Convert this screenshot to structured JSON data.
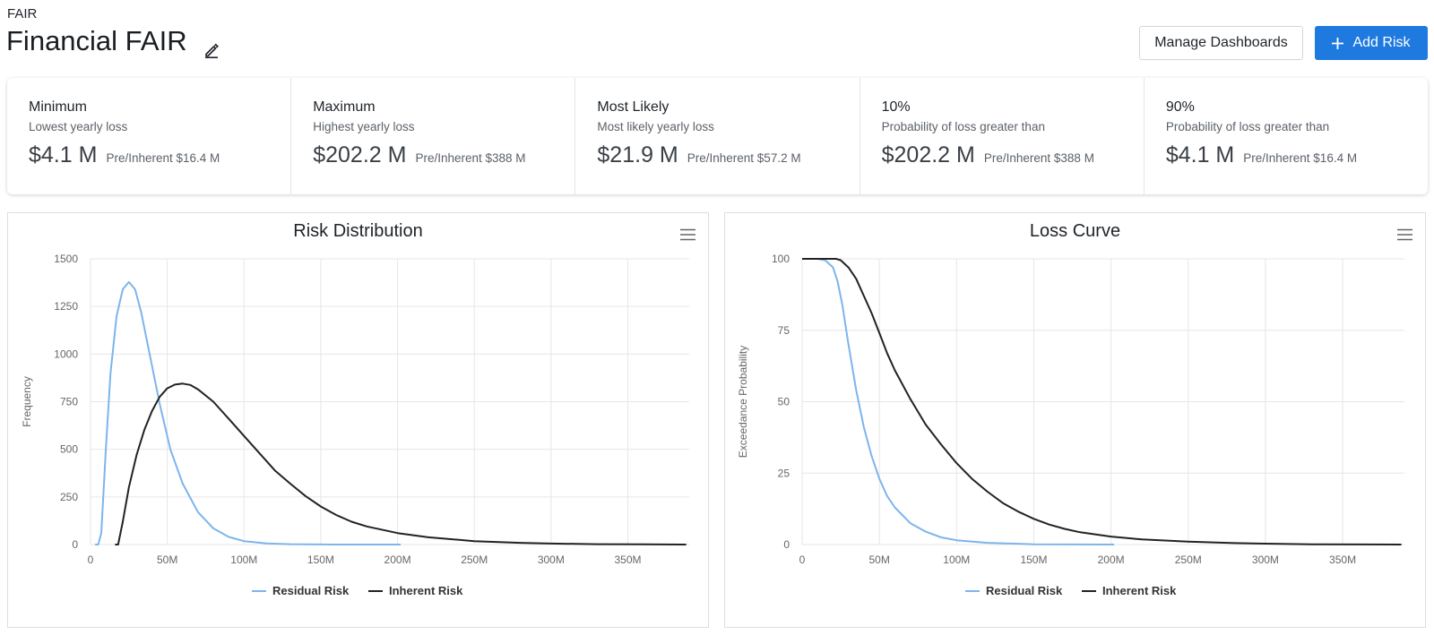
{
  "header": {
    "breadcrumb": "FAIR",
    "title": "Financial FAIR",
    "edit_icon": "pencil-icon",
    "manage_label": "Manage Dashboards",
    "add_label": "Add Risk",
    "add_icon": "plus-icon",
    "accent_color": "#1f7ae0"
  },
  "stats": [
    {
      "label": "Minimum",
      "sub": "Lowest yearly loss",
      "value": "$4.1 M",
      "pre": "Pre/Inherent $16.4 M"
    },
    {
      "label": "Maximum",
      "sub": "Highest yearly loss",
      "value": "$202.2 M",
      "pre": "Pre/Inherent $388 M"
    },
    {
      "label": "Most Likely",
      "sub": "Most likely yearly loss",
      "value": "$21.9 M",
      "pre": "Pre/Inherent $57.2 M"
    },
    {
      "label": "10%",
      "sub": "Probability of loss greater than",
      "value": "$202.2 M",
      "pre": "Pre/Inherent $388 M"
    },
    {
      "label": "90%",
      "sub": "Probability of loss greater than",
      "value": "$4.1 M",
      "pre": "Pre/Inherent $16.4 M"
    }
  ],
  "chart_data": [
    {
      "type": "line",
      "title": "Risk Distribution",
      "xlabel": "",
      "ylabel": "Frequency",
      "xlim": [
        0,
        390
      ],
      "ylim": [
        0,
        1500
      ],
      "x_ticks": [
        "0",
        "50M",
        "100M",
        "150M",
        "200M",
        "250M",
        "300M",
        "350M"
      ],
      "y_ticks": [
        "0",
        "250",
        "500",
        "750",
        "1000",
        "1250",
        "1500"
      ],
      "legend_position": "bottom",
      "menu_icon": "hamburger-menu-icon",
      "series": [
        {
          "name": "Residual Risk",
          "color": "#7cb5ec",
          "points": [
            [
              3,
              0
            ],
            [
              5,
              0
            ],
            [
              7,
              60
            ],
            [
              10,
              500
            ],
            [
              13,
              900
            ],
            [
              17,
              1200
            ],
            [
              21,
              1340
            ],
            [
              25,
              1378
            ],
            [
              29,
              1340
            ],
            [
              33,
              1220
            ],
            [
              38,
              1020
            ],
            [
              45,
              740
            ],
            [
              52,
              500
            ],
            [
              60,
              320
            ],
            [
              70,
              170
            ],
            [
              80,
              85
            ],
            [
              90,
              40
            ],
            [
              100,
              18
            ],
            [
              115,
              6
            ],
            [
              130,
              2
            ],
            [
              160,
              0
            ],
            [
              202,
              0
            ]
          ]
        },
        {
          "name": "Inherent Risk",
          "color": "#222222",
          "points": [
            [
              16,
              0
            ],
            [
              18,
              0
            ],
            [
              21,
              120
            ],
            [
              25,
              300
            ],
            [
              30,
              470
            ],
            [
              35,
              600
            ],
            [
              40,
              700
            ],
            [
              45,
              775
            ],
            [
              50,
              820
            ],
            [
              55,
              840
            ],
            [
              60,
              845
            ],
            [
              65,
              838
            ],
            [
              70,
              815
            ],
            [
              80,
              750
            ],
            [
              90,
              660
            ],
            [
              100,
              570
            ],
            [
              110,
              480
            ],
            [
              120,
              390
            ],
            [
              130,
              320
            ],
            [
              140,
              255
            ],
            [
              150,
              200
            ],
            [
              160,
              155
            ],
            [
              170,
              120
            ],
            [
              180,
              95
            ],
            [
              200,
              60
            ],
            [
              220,
              38
            ],
            [
              250,
              18
            ],
            [
              280,
              9
            ],
            [
              300,
              5
            ],
            [
              330,
              2
            ],
            [
              360,
              1
            ],
            [
              388,
              0
            ]
          ]
        }
      ]
    },
    {
      "type": "line",
      "title": "Loss Curve",
      "xlabel": "",
      "ylabel": "Exceedance Probability",
      "xlim": [
        0,
        390
      ],
      "ylim": [
        0,
        100
      ],
      "x_ticks": [
        "0",
        "50M",
        "100M",
        "150M",
        "200M",
        "250M",
        "300M",
        "350M"
      ],
      "y_ticks": [
        "0",
        "25",
        "50",
        "75",
        "100"
      ],
      "legend_position": "bottom",
      "menu_icon": "hamburger-menu-icon",
      "series": [
        {
          "name": "Residual Risk",
          "color": "#7cb5ec",
          "points": [
            [
              0,
              100
            ],
            [
              10,
              100
            ],
            [
              15,
              99.5
            ],
            [
              20,
              97
            ],
            [
              23,
              92
            ],
            [
              26,
              84
            ],
            [
              30,
              70
            ],
            [
              35,
              54
            ],
            [
              40,
              41
            ],
            [
              45,
              31
            ],
            [
              50,
              23
            ],
            [
              55,
              17
            ],
            [
              60,
              13
            ],
            [
              70,
              7.5
            ],
            [
              80,
              4.5
            ],
            [
              90,
              2.5
            ],
            [
              100,
              1.5
            ],
            [
              120,
              0.6
            ],
            [
              150,
              0.1
            ],
            [
              202,
              0
            ]
          ]
        },
        {
          "name": "Inherent Risk",
          "color": "#222222",
          "points": [
            [
              0,
              100
            ],
            [
              18,
              100
            ],
            [
              22,
              100
            ],
            [
              25,
              99.5
            ],
            [
              30,
              97
            ],
            [
              35,
              93
            ],
            [
              40,
              87
            ],
            [
              45,
              81
            ],
            [
              50,
              74
            ],
            [
              55,
              67
            ],
            [
              60,
              61
            ],
            [
              70,
              51
            ],
            [
              80,
              42
            ],
            [
              90,
              35
            ],
            [
              100,
              28.5
            ],
            [
              110,
              23
            ],
            [
              120,
              18.5
            ],
            [
              130,
              14.5
            ],
            [
              140,
              11.5
            ],
            [
              150,
              9
            ],
            [
              160,
              7
            ],
            [
              170,
              5.5
            ],
            [
              180,
              4.3
            ],
            [
              200,
              2.8
            ],
            [
              220,
              1.8
            ],
            [
              250,
              1
            ],
            [
              280,
              0.5
            ],
            [
              300,
              0.3
            ],
            [
              330,
              0.1
            ],
            [
              388,
              0
            ]
          ]
        }
      ]
    }
  ]
}
